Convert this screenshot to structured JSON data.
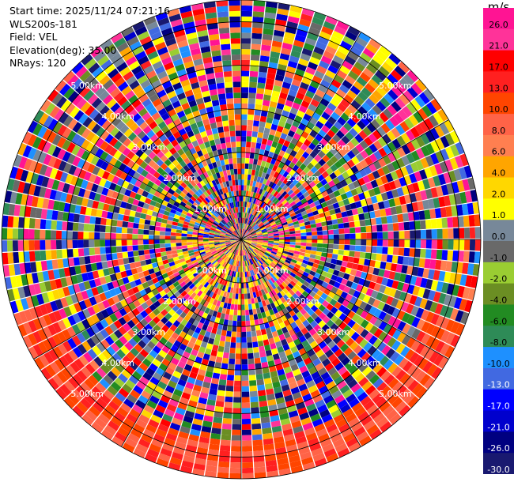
{
  "header": {
    "start_time": "Start time: 2025/11/24 07:21:16",
    "instrument": "WLS200s-181",
    "field": "Field: VEL",
    "elevation": "Elevation(deg): 35.00",
    "nrays": "NRays: 120"
  },
  "chart_data": {
    "type": "polar-ppi",
    "field": "VEL",
    "units": "m/s",
    "nrays": 120,
    "elevation_deg": 35.0,
    "range_rings_km": [
      "1.00km",
      "2.00km",
      "3.00km",
      "4.00km",
      "5.00km"
    ],
    "range_ring_values": [
      1,
      2,
      3,
      4,
      5
    ],
    "colorbar": {
      "labels": [
        "26.0",
        "21.0",
        "17.0",
        "13.0",
        "10.0",
        "8.0",
        "6.0",
        "4.0",
        "2.0",
        "1.0",
        "0.0",
        "-1.0",
        "-2.0",
        "-4.0",
        "-6.0",
        "-8.0",
        "-10.0",
        "-13.0",
        "-17.0",
        "-21.0",
        "-26.0",
        "-30.0"
      ],
      "colors": [
        "#ff1493",
        "#ff3399",
        "#ff0000",
        "#ff2020",
        "#ff4500",
        "#ff6347",
        "#ff7f50",
        "#ffa500",
        "#ffd700",
        "#ffff00",
        "#778899",
        "#696969",
        "#9acd32",
        "#6b8e23",
        "#228b22",
        "#2e8b57",
        "#1e90ff",
        "#4169e1",
        "#0000ff",
        "#0000cd",
        "#000080",
        "#191970"
      ]
    }
  }
}
